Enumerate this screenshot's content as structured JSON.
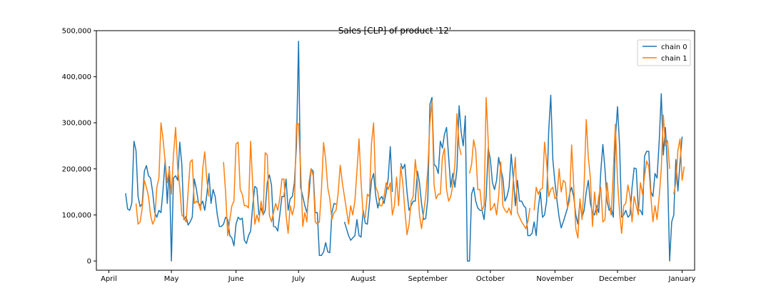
{
  "chart_data": {
    "type": "line",
    "title": "Sales [CLP] of product '12'",
    "xlabel": "",
    "ylabel": "",
    "x_tick_labels": [
      "April",
      "May",
      "June",
      "July",
      "August",
      "September",
      "October",
      "November",
      "December",
      "January"
    ],
    "x_tick_dates": [
      "2021-04-01",
      "2021-05-01",
      "2021-06-01",
      "2021-07-01",
      "2021-08-01",
      "2021-09-01",
      "2021-10-01",
      "2021-11-01",
      "2021-12-01",
      "2022-01-01"
    ],
    "xlim": [
      "2021-03-26",
      "2022-01-07"
    ],
    "ylim": [
      -20000,
      500000
    ],
    "y_ticks": [
      0,
      100000,
      200000,
      300000,
      400000,
      500000
    ],
    "y_tick_labels": [
      "0",
      "100,000",
      "200,000",
      "300,000",
      "400,000",
      "500,000"
    ],
    "grid": false,
    "legend_position": "upper right",
    "series": [
      {
        "name": "chain 0",
        "color": "#1f77b4",
        "start": "2021-04-09",
        "values": [
          147000,
          113000,
          110000,
          125000,
          260000,
          240000,
          140000,
          118000,
          124000,
          195000,
          207000,
          185000,
          180000,
          150000,
          105000,
          95000,
          110000,
          105000,
          155000,
          220000,
          125000,
          205000,
          0,
          180000,
          185000,
          175000,
          258000,
          210000,
          90000,
          97000,
          78000,
          85000,
          95000,
          178000,
          155000,
          125000,
          120000,
          130000,
          110000,
          145000,
          190000,
          125000,
          155000,
          140000,
          100000,
          75000,
          75000,
          80000,
          95000,
          90000,
          55000,
          50000,
          33000,
          80000,
          95000,
          90000,
          93000,
          45000,
          38000,
          55000,
          65000,
          120000,
          162000,
          158000,
          100000,
          115000,
          100000,
          110000,
          170000,
          187000,
          165000,
          75000,
          74000,
          65000,
          100000,
          140000,
          140000,
          178000,
          110000,
          135000,
          140000,
          170000,
          250000,
          477000,
          160000,
          140000,
          120000,
          105000,
          145000,
          200000,
          195000,
          105000,
          105000,
          12000,
          12000,
          20000,
          40000,
          20000,
          18000,
          105000,
          125000,
          123000,
          null,
          null,
          null,
          85000,
          70000,
          55000,
          45000,
          50000,
          55000,
          90000,
          55000,
          52000,
          110000,
          82000,
          80000,
          125000,
          175000,
          190000,
          142000,
          115000,
          135000,
          140000,
          125000,
          148000,
          180000,
          248000,
          150000,
          null,
          null,
          null,
          212000,
          200000,
          210000,
          150000,
          110000,
          120000,
          130000,
          130000,
          195000,
          170000,
          125000,
          90000,
          92000,
          135000,
          340000,
          355000,
          210000,
          205000,
          190000,
          260000,
          245000,
          275000,
          290000,
          225000,
          160000,
          190000,
          160000,
          200000,
          337000,
          280000,
          250000,
          315000,
          0,
          0,
          145000,
          160000,
          130000,
          115000,
          110000,
          110000,
          90000,
          140000,
          245000,
          220000,
          170000,
          155000,
          175000,
          225000,
          200000,
          180000,
          130000,
          140000,
          160000,
          232000,
          180000,
          120000,
          175000,
          130000,
          130000,
          120000,
          115000,
          55000,
          55000,
          60000,
          85000,
          55000,
          115000,
          150000,
          95000,
          100000,
          130000,
          282000,
          360000,
          220000,
          170000,
          130000,
          95000,
          72000,
          85000,
          100000,
          115000,
          145000,
          160000,
          140000,
          100000,
          80000,
          130000,
          95000,
          110000,
          150000,
          175000,
          125000,
          105000,
          100000,
          120000,
          105000,
          195000,
          253000,
          200000,
          130000,
          110000,
          115000,
          95000,
          265000,
          335000,
          250000,
          95000,
          100000,
          110000,
          95000,
          100000,
          160000,
          202000,
          200000,
          110000,
          110000,
          100000,
          228000,
          238000,
          238000,
          150000,
          140000,
          190000,
          180000,
          260000,
          363000,
          230000,
          290000,
          200000,
          0,
          85000,
          100000,
          220000,
          152000,
          215000,
          270000
        ]
      },
      {
        "name": "chain 1",
        "color": "#ff7f0e",
        "start": "2021-04-14",
        "values": [
          125000,
          80000,
          85000,
          115000,
          175000,
          160000,
          140000,
          100000,
          80000,
          90000,
          160000,
          180000,
          300000,
          265000,
          215000,
          170000,
          200000,
          145000,
          230000,
          290000,
          200000,
          160000,
          100000,
          95000,
          85000,
          150000,
          215000,
          220000,
          125000,
          130000,
          125000,
          110000,
          200000,
          237000,
          175000,
          140000,
          null,
          null,
          null,
          null,
          null,
          null,
          215000,
          150000,
          55000,
          90000,
          120000,
          130000,
          254000,
          258000,
          155000,
          145000,
          120000,
          120000,
          115000,
          260000,
          165000,
          80000,
          100000,
          85000,
          130000,
          100000,
          235000,
          230000,
          100000,
          85000,
          105000,
          125000,
          110000,
          135000,
          178000,
          178000,
          100000,
          60000,
          120000,
          100000,
          120000,
          298000,
          298000,
          200000,
          75000,
          105000,
          85000,
          170000,
          200000,
          185000,
          85000,
          80000,
          85000,
          155000,
          257000,
          220000,
          160000,
          135000,
          90000,
          105000,
          110000,
          148000,
          208000,
          170000,
          140000,
          110000,
          80000,
          120000,
          100000,
          130000,
          195000,
          265000,
          170000,
          100000,
          95000,
          145000,
          140000,
          255000,
          300000,
          160000,
          150000,
          120000,
          120000,
          140000,
          170000,
          155000,
          170000,
          100000,
          120000,
          182000,
          120000,
          205000,
          170000,
          110000,
          57000,
          80000,
          130000,
          140000,
          220000,
          175000,
          100000,
          70000,
          105000,
          140000,
          200000,
          300000,
          348000,
          165000,
          135000,
          145000,
          145000,
          225000,
          245000,
          155000,
          130000,
          140000,
          165000,
          210000,
          320000,
          250000,
          230000,
          null,
          null,
          null,
          190000,
          210000,
          263000,
          240000,
          155000,
          155000,
          110000,
          120000,
          355000,
          260000,
          110000,
          115000,
          125000,
          100000,
          140000,
          215000,
          120000,
          110000,
          105000,
          115000,
          100000,
          175000,
          225000,
          105000,
          95000,
          85000,
          78000,
          70000,
          85000,
          115000,
          null,
          110000,
          160000,
          145000,
          155000,
          158000,
          258000,
          215000,
          140000,
          155000,
          160000,
          135000,
          140000,
          200000,
          150000,
          175000,
          170000,
          115000,
          130000,
          252000,
          165000,
          70000,
          50000,
          135000,
          90000,
          165000,
          307000,
          225000,
          180000,
          75000,
          150000,
          100000,
          140000,
          160000,
          85000,
          90000,
          170000,
          125000,
          100000,
          195000,
          297000,
          175000,
          105000,
          60000,
          120000,
          125000,
          165000,
          140000,
          85000,
          140000,
          120000,
          100000,
          170000,
          145000,
          185000,
          217000,
          205000,
          140000,
          85000,
          120000,
          90000,
          140000,
          200000,
          317000,
          250000,
          262000,
          200000,
          null,
          145000,
          170000,
          240000,
          265000,
          175000,
          205000
        ]
      }
    ]
  }
}
